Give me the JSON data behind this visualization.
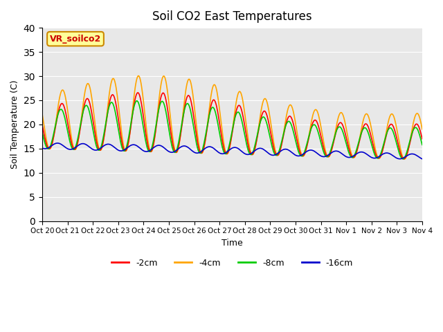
{
  "title": "Soil CO2 East Temperatures",
  "xlabel": "Time",
  "ylabel": "Soil Temperature (C)",
  "ylim": [
    0,
    40
  ],
  "yticks": [
    0,
    5,
    10,
    15,
    20,
    25,
    30,
    35,
    40
  ],
  "plot_bg_color": "#e8e8e8",
  "series_colors": [
    "#ff0000",
    "#ffa500",
    "#00cc00",
    "#0000cc"
  ],
  "series_labels": [
    "-2cm",
    "-4cm",
    "-8cm",
    "-16cm"
  ],
  "x_tick_labels": [
    "Oct 20",
    "Oct 21",
    "Oct 22",
    "Oct 23",
    "Oct 24",
    "Oct 25",
    "Oct 26",
    "Oct 27",
    "Oct 28",
    "Oct 29",
    "Oct 30",
    "Oct 31",
    "Nov 1",
    "Nov 2",
    "Nov 3",
    "Nov 4"
  ],
  "annotation_text": "VR_soilco2",
  "annotation_box_color": "#ffff99",
  "annotation_border_color": "#cc8800",
  "n_days": 15,
  "points_per_day": 48
}
